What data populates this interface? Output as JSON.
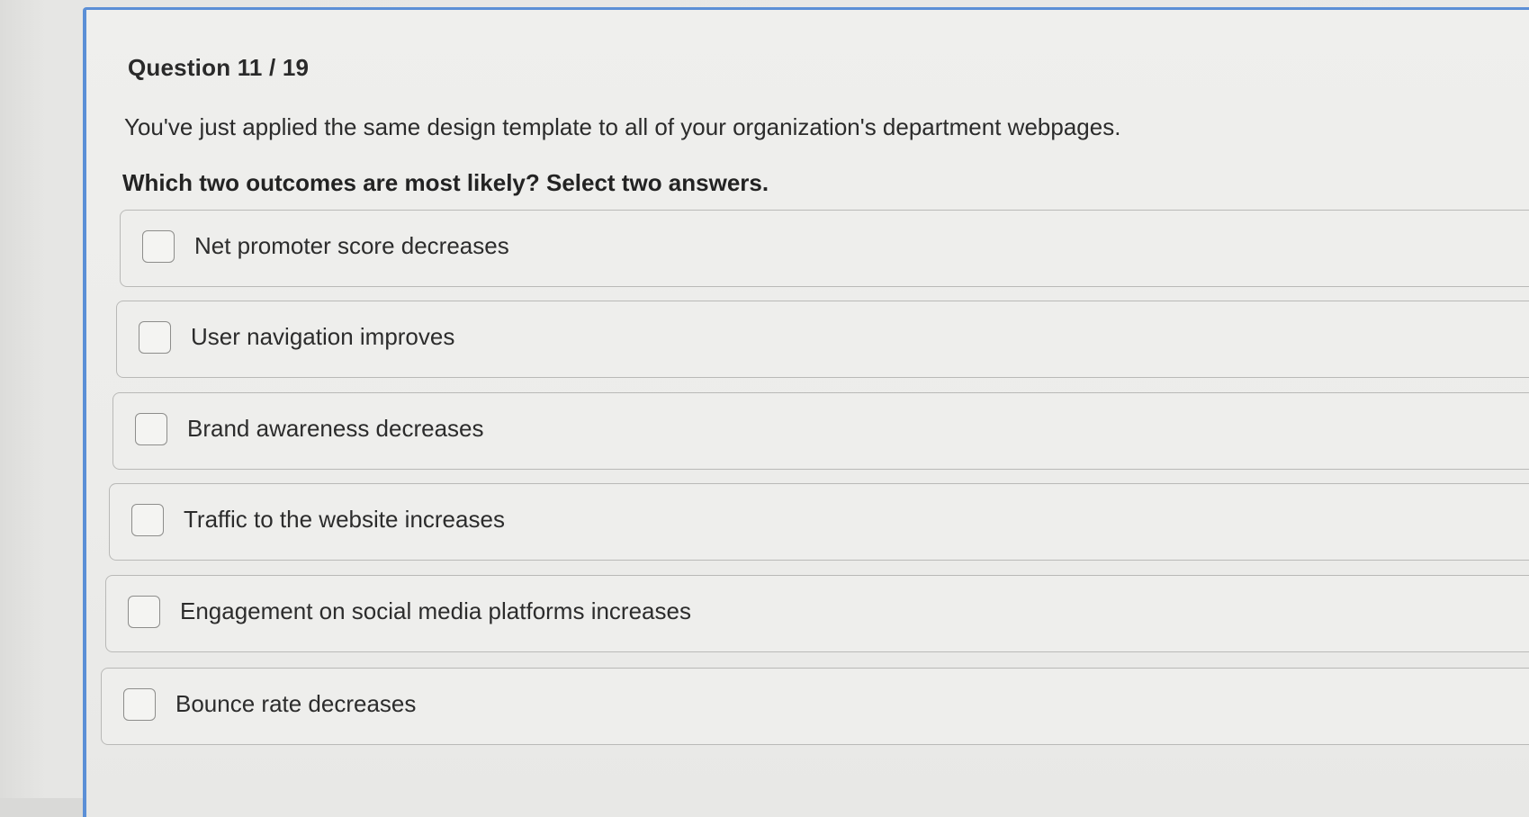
{
  "question": {
    "number_label": "Question 11 / 19",
    "stem": "You've just applied the same design template to all of your organization's department webpages.",
    "instruction": "Which two outcomes are most likely? Select two answers."
  },
  "options": [
    {
      "label": "Net promoter score decreases",
      "checked": false
    },
    {
      "label": "User navigation improves",
      "checked": false
    },
    {
      "label": "Brand awareness decreases",
      "checked": false
    },
    {
      "label": "Traffic to the website increases",
      "checked": false
    },
    {
      "label": "Engagement on social media platforms increases",
      "checked": false
    },
    {
      "label": "Bounce rate decreases",
      "checked": false
    }
  ],
  "colors": {
    "accent_border": "#5b8fd6",
    "card_background": "#eeeeec",
    "text": "#2c2c2c"
  }
}
